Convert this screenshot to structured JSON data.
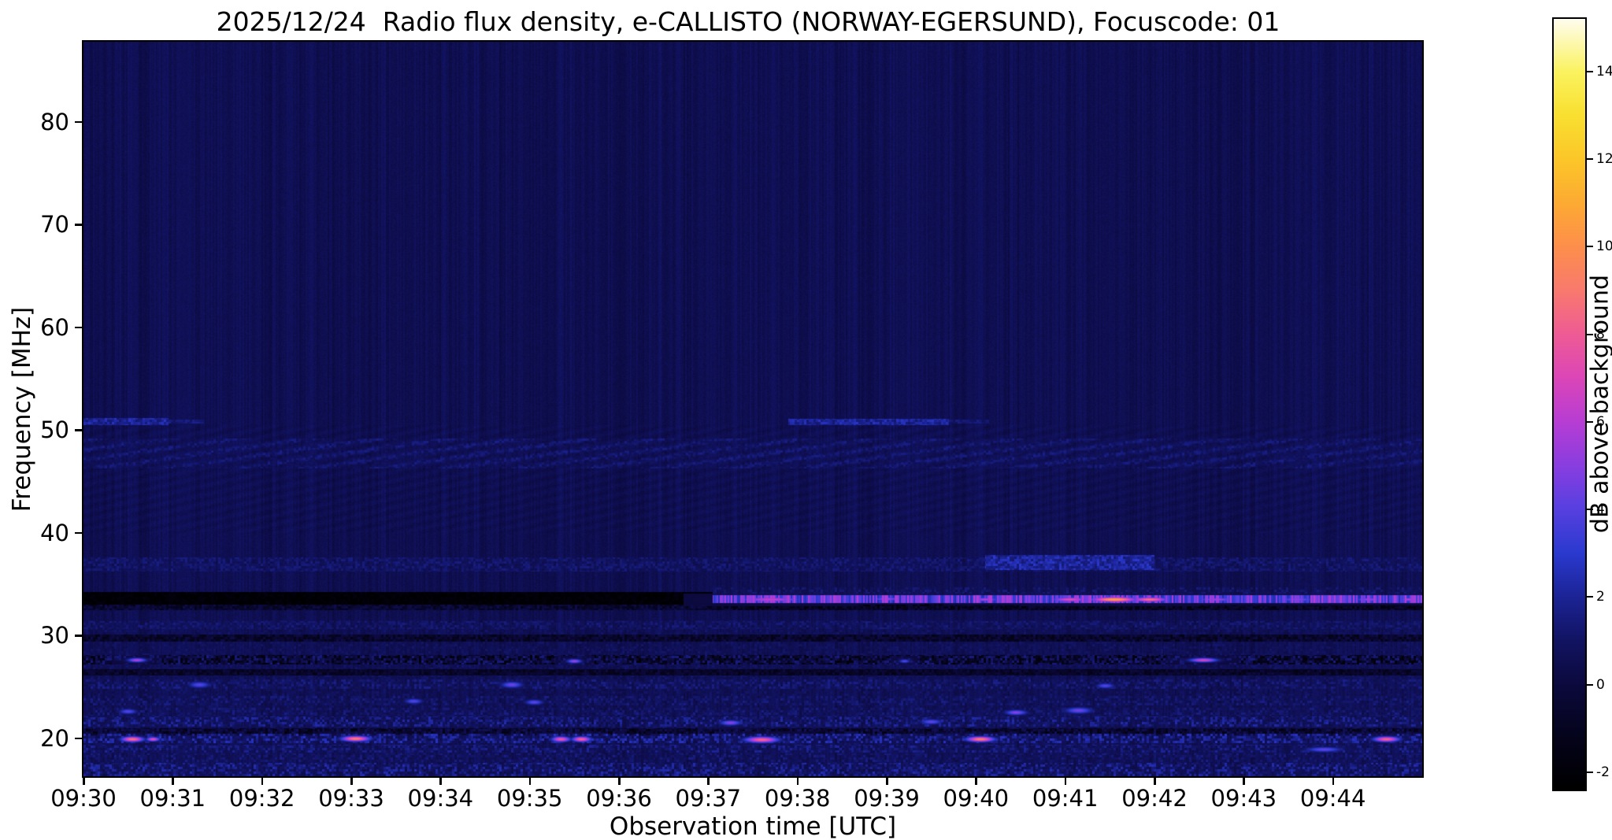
{
  "chart_data": {
    "type": "heatmap",
    "title": "2025/12/24  Radio flux density, e-CALLISTO (NORWAY-EGERSUND), Focuscode: 01",
    "xlabel": "Observation time [UTC]",
    "ylabel": "Frequency [MHz]",
    "colorbar_label": "dB above background",
    "x_ticks": [
      "09:30",
      "09:31",
      "09:32",
      "09:33",
      "09:34",
      "09:35",
      "09:36",
      "09:37",
      "09:38",
      "09:39",
      "09:40",
      "09:41",
      "09:42",
      "09:43",
      "09:44"
    ],
    "y_ticks": [
      80,
      70,
      60,
      50,
      40,
      30,
      20
    ],
    "colorbar_ticks": [
      14,
      12,
      10,
      8,
      6,
      4,
      2,
      0,
      -2
    ],
    "x_range_minutes": [
      0,
      15
    ],
    "y_range_mhz": [
      16.3,
      87.8
    ],
    "colorbar_range": [
      -2.4,
      15.2
    ],
    "background_level_db": 0.55,
    "grid": false,
    "colors": {
      "figure_background": "#ffffff",
      "text": "#000000",
      "frame": "#000000"
    },
    "colormap_stops": [
      [
        -2.4,
        "#000000"
      ],
      [
        -1.2,
        "#05041c"
      ],
      [
        0,
        "#0c0a3e"
      ],
      [
        1,
        "#121463"
      ],
      [
        2,
        "#1c2496"
      ],
      [
        3,
        "#2b3ad0"
      ],
      [
        4,
        "#5840e0"
      ],
      [
        5,
        "#8a3ee0"
      ],
      [
        6,
        "#b83dd4"
      ],
      [
        7,
        "#dc46b8"
      ],
      [
        8,
        "#ef5c95"
      ],
      [
        9,
        "#f97a6e"
      ],
      [
        10,
        "#fd8f4c"
      ],
      [
        11,
        "#fdab33"
      ],
      [
        12,
        "#fcc729"
      ],
      [
        13,
        "#f9e031"
      ],
      [
        14,
        "#fbf360"
      ],
      [
        15.2,
        "#fffdf0"
      ]
    ],
    "features": {
      "bands": [
        {
          "f": [
            16.3,
            31.5
          ],
          "level": 0.2,
          "speckle": 1.0,
          "mode": "max"
        },
        {
          "f": [
            30.6,
            31.4
          ],
          "level": 0.6,
          "speckle": 1.0,
          "mode": "max"
        },
        {
          "f": [
            29.4,
            30.1
          ],
          "level": -0.6,
          "speckle": 0.9,
          "mode": "set"
        },
        {
          "f": [
            27.2,
            28.1
          ],
          "level": -0.2,
          "speckle": 1.8,
          "mode": "set"
        },
        {
          "f": [
            26.1,
            26.7
          ],
          "level": -0.7,
          "speckle": 0.8,
          "mode": "set"
        },
        {
          "f": [
            24.8,
            25.7
          ],
          "level": 0.6,
          "speckle": 1.2,
          "mode": "max"
        },
        {
          "f": [
            23.2,
            24.1
          ],
          "level": 0.3,
          "speckle": 1.4,
          "mode": "max"
        },
        {
          "f": [
            22.2,
            23.0
          ],
          "level": 0.2,
          "speckle": 1.5,
          "mode": "max"
        },
        {
          "f": [
            21.1,
            22.1
          ],
          "level": 0.7,
          "speckle": 1.7,
          "mode": "max"
        },
        {
          "f": [
            20.3,
            21.0
          ],
          "level": -0.4,
          "speckle": 1.2,
          "mode": "set"
        },
        {
          "f": [
            19.5,
            20.4
          ],
          "level": 1.0,
          "speckle": 1.8,
          "mode": "max"
        },
        {
          "f": [
            18.6,
            19.4
          ],
          "level": 0.6,
          "speckle": 1.5,
          "mode": "max"
        },
        {
          "f": [
            17.7,
            18.5
          ],
          "level": 0.2,
          "speckle": 1.5,
          "mode": "max"
        },
        {
          "f": [
            16.3,
            17.6
          ],
          "level": 0.8,
          "speckle": 1.7,
          "mode": "max"
        },
        {
          "f": [
            46.3,
            49.2
          ],
          "level": 0.7,
          "speckle": 0.6,
          "mode": "max",
          "pattern": "diag"
        },
        {
          "f": [
            50.5,
            51.2
          ],
          "t": [
            0,
            0.95
          ],
          "level": 2.0,
          "speckle": 0.8,
          "mode": "max"
        },
        {
          "f": [
            50.6,
            51.0
          ],
          "t": [
            0.95,
            1.35
          ],
          "level": 1.4,
          "speckle": 0.5,
          "mode": "max"
        },
        {
          "f": [
            50.5,
            51.1
          ],
          "t": [
            7.9,
            9.7
          ],
          "level": 2.0,
          "speckle": 0.8,
          "mode": "max"
        },
        {
          "f": [
            50.6,
            51.0
          ],
          "t": [
            9.7,
            10.15
          ],
          "level": 1.2,
          "speckle": 0.5,
          "mode": "max"
        },
        {
          "f": [
            36.2,
            37.6
          ],
          "level": 0.9,
          "speckle": 0.7,
          "mode": "max"
        },
        {
          "f": [
            36.4,
            37.8
          ],
          "t": [
            10.1,
            12.0
          ],
          "level": 2.1,
          "speckle": 0.9,
          "mode": "max"
        },
        {
          "f": [
            34.1,
            34.7
          ],
          "t": [
            7.05,
            15
          ],
          "level": 0.5,
          "speckle": 1.0,
          "mode": "max"
        },
        {
          "f": [
            33.0,
            34.25
          ],
          "t": [
            0,
            7.05
          ],
          "level": -2.1,
          "speckle": 0.35,
          "mode": "set"
        },
        {
          "f": [
            32.5,
            33.0
          ],
          "t": [
            0,
            7.05
          ],
          "level": -0.5,
          "speckle": 0.9,
          "mode": "set"
        },
        {
          "f": [
            33.15,
            33.95
          ],
          "t": [
            7.05,
            15
          ],
          "level": 4.2,
          "speckle": 1.8,
          "mode": "max",
          "flicker": "col"
        },
        {
          "f": [
            32.5,
            33.1
          ],
          "t": [
            7.05,
            15
          ],
          "level": -1.0,
          "speckle": 1.0,
          "mode": "set"
        }
      ],
      "spots": [
        {
          "t": 0.55,
          "f": 19.9,
          "st": 0.12,
          "sf": 0.25,
          "peak": 9.0
        },
        {
          "t": 0.78,
          "f": 19.9,
          "st": 0.07,
          "sf": 0.2,
          "peak": 7.5
        },
        {
          "t": 3.05,
          "f": 19.95,
          "st": 0.15,
          "sf": 0.25,
          "peak": 9.5
        },
        {
          "t": 5.35,
          "f": 19.9,
          "st": 0.1,
          "sf": 0.25,
          "peak": 8.0
        },
        {
          "t": 5.58,
          "f": 19.9,
          "st": 0.1,
          "sf": 0.25,
          "peak": 8.5
        },
        {
          "t": 7.6,
          "f": 19.85,
          "st": 0.18,
          "sf": 0.28,
          "peak": 8.5
        },
        {
          "t": 10.05,
          "f": 19.9,
          "st": 0.15,
          "sf": 0.25,
          "peak": 9.5
        },
        {
          "t": 14.6,
          "f": 19.9,
          "st": 0.14,
          "sf": 0.25,
          "peak": 8.5
        },
        {
          "t": 0.6,
          "f": 27.6,
          "st": 0.1,
          "sf": 0.2,
          "peak": 6.0
        },
        {
          "t": 5.5,
          "f": 27.5,
          "st": 0.08,
          "sf": 0.2,
          "peak": 5.5
        },
        {
          "t": 12.55,
          "f": 27.6,
          "st": 0.15,
          "sf": 0.2,
          "peak": 7.0
        },
        {
          "t": 9.2,
          "f": 27.5,
          "st": 0.06,
          "sf": 0.18,
          "peak": 4.0
        },
        {
          "t": 1.3,
          "f": 25.2,
          "st": 0.12,
          "sf": 0.3,
          "peak": 4.0
        },
        {
          "t": 4.8,
          "f": 25.2,
          "st": 0.12,
          "sf": 0.3,
          "peak": 4.5
        },
        {
          "t": 11.45,
          "f": 25.1,
          "st": 0.1,
          "sf": 0.25,
          "peak": 4.0
        },
        {
          "t": 3.7,
          "f": 23.6,
          "st": 0.1,
          "sf": 0.25,
          "peak": 4.0
        },
        {
          "t": 5.05,
          "f": 23.5,
          "st": 0.1,
          "sf": 0.25,
          "peak": 4.2
        },
        {
          "t": 0.5,
          "f": 22.6,
          "st": 0.1,
          "sf": 0.25,
          "peak": 4.0
        },
        {
          "t": 10.45,
          "f": 22.5,
          "st": 0.12,
          "sf": 0.25,
          "peak": 5.0
        },
        {
          "t": 11.15,
          "f": 22.7,
          "st": 0.15,
          "sf": 0.3,
          "peak": 4.5
        },
        {
          "t": 9.5,
          "f": 21.6,
          "st": 0.12,
          "sf": 0.25,
          "peak": 4.2
        },
        {
          "t": 7.25,
          "f": 21.5,
          "st": 0.12,
          "sf": 0.25,
          "peak": 5.0
        },
        {
          "t": 13.9,
          "f": 18.9,
          "st": 0.2,
          "sf": 0.25,
          "peak": 4.2
        },
        {
          "t": 7.7,
          "f": 33.5,
          "st": 0.35,
          "sf": 0.22,
          "peak": 6.5
        },
        {
          "t": 9.0,
          "f": 33.55,
          "st": 0.15,
          "sf": 0.2,
          "peak": 5.5
        },
        {
          "t": 10.1,
          "f": 33.5,
          "st": 0.15,
          "sf": 0.2,
          "peak": 6.0
        },
        {
          "t": 11.05,
          "f": 33.5,
          "st": 0.2,
          "sf": 0.22,
          "peak": 7.5
        },
        {
          "t": 11.55,
          "f": 33.5,
          "st": 0.25,
          "sf": 0.24,
          "peak": 11.0
        },
        {
          "t": 11.95,
          "f": 33.5,
          "st": 0.2,
          "sf": 0.22,
          "peak": 9.0
        },
        {
          "t": 12.7,
          "f": 33.5,
          "st": 0.2,
          "sf": 0.2,
          "peak": 5.5
        },
        {
          "t": 13.6,
          "f": 33.5,
          "st": 0.2,
          "sf": 0.2,
          "peak": 5.0
        },
        {
          "t": 14.4,
          "f": 33.5,
          "st": 0.15,
          "sf": 0.2,
          "peak": 5.5
        },
        {
          "t": 14.85,
          "f": 33.5,
          "st": 0.1,
          "sf": 0.2,
          "peak": 6.0
        }
      ]
    }
  }
}
